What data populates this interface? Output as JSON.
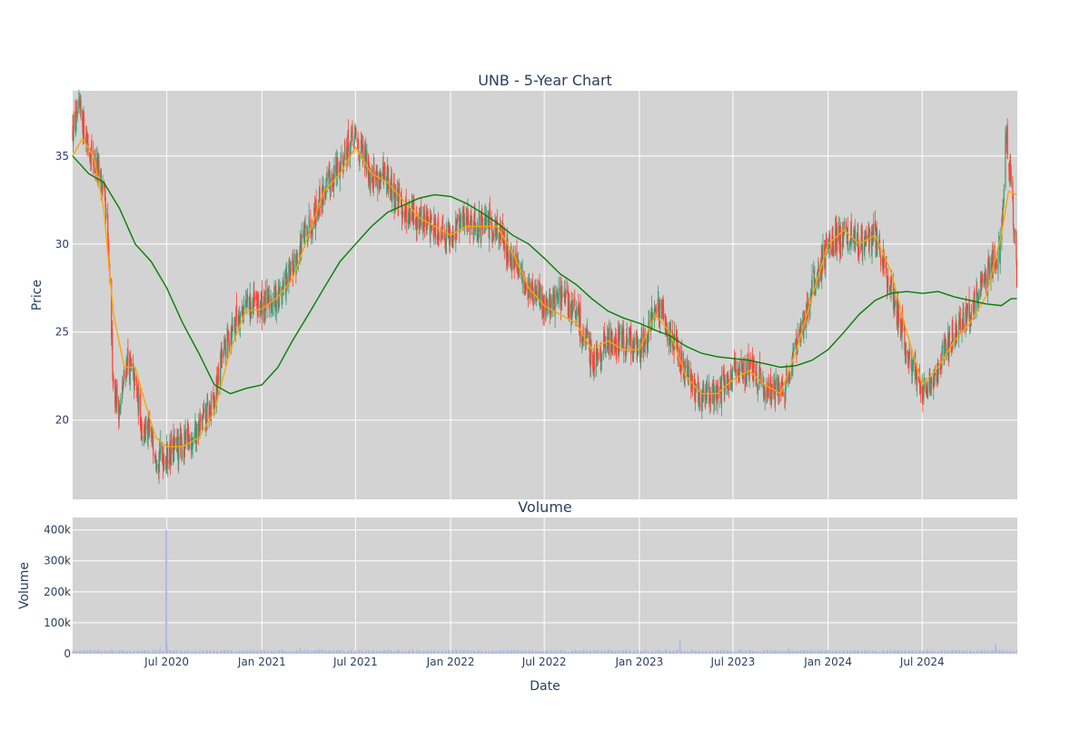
{
  "chart_data": [
    {
      "type": "candlestick",
      "title": "UNB - 5-Year Chart",
      "xlabel": "",
      "ylabel": "Price",
      "x_range": [
        "2020-01-01",
        "2025-01-01"
      ],
      "ylim": [
        15.5,
        38.7
      ],
      "yticks": [
        20,
        25,
        30,
        35
      ],
      "grid": true,
      "legend": "none",
      "colors": {
        "increasing": "#3d9970",
        "decreasing": "#ff4136",
        "ma_short": "#ffa500",
        "ma_long": "#008000",
        "plot_bg": "#d3d3d3"
      },
      "series": [
        {
          "name": "",
          "kind": "close",
          "points": [
            [
              "2020-01-01",
              36.5
            ],
            [
              "2020-01-15",
              37.5
            ],
            [
              "2020-02-01",
              35.5
            ],
            [
              "2020-02-15",
              34.5
            ],
            [
              "2020-03-01",
              33.0
            ],
            [
              "2020-03-10",
              29.5
            ],
            [
              "2020-03-20",
              22.0
            ],
            [
              "2020-04-01",
              20.5
            ],
            [
              "2020-04-15",
              23.5
            ],
            [
              "2020-05-01",
              22.0
            ],
            [
              "2020-05-15",
              19.5
            ],
            [
              "2020-06-01",
              19.0
            ],
            [
              "2020-06-15",
              18.0
            ],
            [
              "2020-07-01",
              18.0
            ],
            [
              "2020-07-15",
              18.3
            ],
            [
              "2020-08-01",
              18.5
            ],
            [
              "2020-09-01",
              19.5
            ],
            [
              "2020-10-01",
              21.0
            ],
            [
              "2020-10-15",
              23.5
            ],
            [
              "2020-11-01",
              25.0
            ],
            [
              "2020-11-15",
              26.0
            ],
            [
              "2020-12-01",
              26.5
            ],
            [
              "2020-12-15",
              26.5
            ],
            [
              "2021-01-01",
              26.5
            ],
            [
              "2021-02-01",
              27.0
            ],
            [
              "2021-03-01",
              28.5
            ],
            [
              "2021-04-01",
              31.0
            ],
            [
              "2021-05-01",
              33.0
            ],
            [
              "2021-06-01",
              34.5
            ],
            [
              "2021-06-15",
              35.5
            ],
            [
              "2021-07-01",
              36.0
            ],
            [
              "2021-07-15",
              35.0
            ],
            [
              "2021-08-01",
              34.0
            ],
            [
              "2021-09-01",
              33.5
            ],
            [
              "2021-10-01",
              32.0
            ],
            [
              "2021-11-01",
              31.5
            ],
            [
              "2021-12-01",
              31.0
            ],
            [
              "2022-01-01",
              30.5
            ],
            [
              "2022-02-01",
              31.5
            ],
            [
              "2022-03-01",
              31.0
            ],
            [
              "2022-04-01",
              31.0
            ],
            [
              "2022-05-01",
              29.0
            ],
            [
              "2022-06-01",
              27.5
            ],
            [
              "2022-07-01",
              26.5
            ],
            [
              "2022-08-01",
              27.0
            ],
            [
              "2022-09-01",
              26.0
            ],
            [
              "2022-10-01",
              23.5
            ],
            [
              "2022-11-01",
              24.5
            ],
            [
              "2022-12-01",
              24.5
            ],
            [
              "2023-01-01",
              24.0
            ],
            [
              "2023-02-01",
              26.5
            ],
            [
              "2023-03-01",
              25.0
            ],
            [
              "2023-04-01",
              22.5
            ],
            [
              "2023-05-01",
              21.5
            ],
            [
              "2023-06-01",
              21.5
            ],
            [
              "2023-07-01",
              22.5
            ],
            [
              "2023-08-01",
              23.0
            ],
            [
              "2023-09-01",
              22.0
            ],
            [
              "2023-10-01",
              21.5
            ],
            [
              "2023-11-01",
              24.0
            ],
            [
              "2023-12-01",
              27.5
            ],
            [
              "2024-01-01",
              30.0
            ],
            [
              "2024-02-01",
              30.5
            ],
            [
              "2024-03-01",
              30.0
            ],
            [
              "2024-04-01",
              30.5
            ],
            [
              "2024-05-01",
              27.5
            ],
            [
              "2024-06-01",
              24.0
            ],
            [
              "2024-07-01",
              21.5
            ],
            [
              "2024-08-01",
              23.0
            ],
            [
              "2024-09-01",
              25.0
            ],
            [
              "2024-10-01",
              26.0
            ],
            [
              "2024-11-01",
              28.0
            ],
            [
              "2024-12-01",
              30.0
            ],
            [
              "2024-12-10",
              36.5
            ],
            [
              "2024-12-20",
              33.5
            ],
            [
              "2024-12-31",
              28.0
            ]
          ]
        },
        {
          "name": "",
          "kind": "moving_average_short",
          "points": [
            [
              "2020-01-01",
              35.0
            ],
            [
              "2020-01-20",
              36.0
            ],
            [
              "2020-02-10",
              35.0
            ],
            [
              "2020-03-01",
              32.0
            ],
            [
              "2020-03-20",
              26.0
            ],
            [
              "2020-04-10",
              23.0
            ],
            [
              "2020-05-01",
              23.0
            ],
            [
              "2020-05-20",
              21.0
            ],
            [
              "2020-06-10",
              19.0
            ],
            [
              "2020-07-01",
              18.5
            ],
            [
              "2020-08-01",
              18.5
            ],
            [
              "2020-09-01",
              19.0
            ],
            [
              "2020-10-01",
              20.5
            ],
            [
              "2020-11-01",
              24.0
            ],
            [
              "2020-12-01",
              26.2
            ],
            [
              "2021-01-01",
              26.3
            ],
            [
              "2021-02-01",
              27.0
            ],
            [
              "2021-03-01",
              28.0
            ],
            [
              "2021-04-01",
              30.5
            ],
            [
              "2021-05-01",
              33.0
            ],
            [
              "2021-06-01",
              34.0
            ],
            [
              "2021-07-01",
              35.5
            ],
            [
              "2021-08-01",
              34.0
            ],
            [
              "2021-09-01",
              33.5
            ],
            [
              "2021-10-01",
              32.5
            ],
            [
              "2021-11-01",
              31.5
            ],
            [
              "2022-01-01",
              30.5
            ],
            [
              "2022-02-01",
              31.0
            ],
            [
              "2022-04-01",
              31.0
            ],
            [
              "2022-05-01",
              29.5
            ],
            [
              "2022-06-01",
              27.5
            ],
            [
              "2022-07-01",
              26.5
            ],
            [
              "2022-09-01",
              25.5
            ],
            [
              "2022-10-01",
              24.0
            ],
            [
              "2022-11-01",
              24.5
            ],
            [
              "2022-12-01",
              24.0
            ],
            [
              "2023-01-01",
              24.0
            ],
            [
              "2023-02-01",
              26.0
            ],
            [
              "2023-03-01",
              25.0
            ],
            [
              "2023-04-01",
              22.5
            ],
            [
              "2023-05-01",
              21.5
            ],
            [
              "2023-06-01",
              21.5
            ],
            [
              "2023-07-01",
              22.3
            ],
            [
              "2023-08-01",
              22.8
            ],
            [
              "2023-09-01",
              22.0
            ],
            [
              "2023-10-01",
              21.5
            ],
            [
              "2023-11-01",
              24.0
            ],
            [
              "2023-12-01",
              27.0
            ],
            [
              "2024-01-01",
              30.0
            ],
            [
              "2024-02-01",
              30.8
            ],
            [
              "2024-03-01",
              30.0
            ],
            [
              "2024-04-01",
              30.5
            ],
            [
              "2024-05-01",
              28.5
            ],
            [
              "2024-06-01",
              25.0
            ],
            [
              "2024-07-01",
              22.0
            ],
            [
              "2024-08-01",
              23.0
            ],
            [
              "2024-09-01",
              24.5
            ],
            [
              "2024-10-01",
              25.5
            ],
            [
              "2024-11-01",
              27.0
            ],
            [
              "2024-12-01",
              30.5
            ],
            [
              "2024-12-15",
              33.0
            ],
            [
              "2024-12-31",
              32.8
            ]
          ]
        },
        {
          "name": "",
          "kind": "moving_average_long",
          "points": [
            [
              "2020-01-01",
              35.0
            ],
            [
              "2020-02-01",
              34.0
            ],
            [
              "2020-03-01",
              33.5
            ],
            [
              "2020-04-01",
              32.0
            ],
            [
              "2020-05-01",
              30.0
            ],
            [
              "2020-06-01",
              29.0
            ],
            [
              "2020-07-01",
              27.5
            ],
            [
              "2020-08-01",
              25.5
            ],
            [
              "2020-09-01",
              23.8
            ],
            [
              "2020-10-01",
              22.0
            ],
            [
              "2020-11-01",
              21.5
            ],
            [
              "2020-12-01",
              21.8
            ],
            [
              "2021-01-01",
              22.0
            ],
            [
              "2021-02-01",
              23.0
            ],
            [
              "2021-03-01",
              24.5
            ],
            [
              "2021-04-01",
              26.0
            ],
            [
              "2021-05-01",
              27.5
            ],
            [
              "2021-06-01",
              29.0
            ],
            [
              "2021-07-01",
              30.0
            ],
            [
              "2021-08-01",
              31.0
            ],
            [
              "2021-09-01",
              31.8
            ],
            [
              "2021-10-01",
              32.2
            ],
            [
              "2021-11-01",
              32.6
            ],
            [
              "2021-12-01",
              32.8
            ],
            [
              "2022-01-01",
              32.7
            ],
            [
              "2022-02-01",
              32.3
            ],
            [
              "2022-03-01",
              31.8
            ],
            [
              "2022-04-01",
              31.2
            ],
            [
              "2022-05-01",
              30.5
            ],
            [
              "2022-06-01",
              30.0
            ],
            [
              "2022-07-01",
              29.2
            ],
            [
              "2022-08-01",
              28.3
            ],
            [
              "2022-09-01",
              27.7
            ],
            [
              "2022-10-01",
              26.9
            ],
            [
              "2022-11-01",
              26.2
            ],
            [
              "2022-12-01",
              25.8
            ],
            [
              "2023-01-01",
              25.5
            ],
            [
              "2023-02-01",
              25.1
            ],
            [
              "2023-03-01",
              24.8
            ],
            [
              "2023-04-01",
              24.2
            ],
            [
              "2023-05-01",
              23.8
            ],
            [
              "2023-06-01",
              23.6
            ],
            [
              "2023-07-01",
              23.5
            ],
            [
              "2023-08-01",
              23.4
            ],
            [
              "2023-09-01",
              23.2
            ],
            [
              "2023-10-01",
              23.0
            ],
            [
              "2023-11-01",
              23.1
            ],
            [
              "2023-12-01",
              23.4
            ],
            [
              "2024-01-01",
              24.0
            ],
            [
              "2024-02-01",
              25.0
            ],
            [
              "2024-03-01",
              26.0
            ],
            [
              "2024-04-01",
              26.8
            ],
            [
              "2024-05-01",
              27.2
            ],
            [
              "2024-06-01",
              27.3
            ],
            [
              "2024-07-01",
              27.2
            ],
            [
              "2024-08-01",
              27.3
            ],
            [
              "2024-09-01",
              27.0
            ],
            [
              "2024-10-01",
              26.8
            ],
            [
              "2024-11-01",
              26.6
            ],
            [
              "2024-12-01",
              26.5
            ],
            [
              "2024-12-20",
              26.9
            ],
            [
              "2024-12-31",
              26.9
            ]
          ]
        }
      ]
    },
    {
      "type": "bar",
      "title": "Volume",
      "xlabel": "Date",
      "ylabel": "Volume",
      "ylim": [
        0,
        440000
      ],
      "yticks": [
        0,
        100000,
        200000,
        300000,
        400000
      ],
      "ytick_labels": [
        "0",
        "100k",
        "200k",
        "300k",
        "400k"
      ],
      "xticks": [
        "2020-07-01",
        "2021-01-01",
        "2021-07-01",
        "2022-01-01",
        "2022-07-01",
        "2023-01-01",
        "2023-07-01",
        "2024-01-01",
        "2024-07-01"
      ],
      "xtick_labels": [
        "Jul 2020",
        "Jan 2021",
        "Jul 2021",
        "Jan 2022",
        "Jul 2022",
        "Jan 2023",
        "Jul 2023",
        "Jan 2024",
        "Jul 2024"
      ],
      "color": "#b0b8e8",
      "grid": true,
      "series": [
        {
          "name": "",
          "base": 9000,
          "spikes": [
            [
              "2020-06-30",
              400000
            ],
            [
              "2020-06-20",
              25000
            ],
            [
              "2020-07-04",
              30000
            ],
            [
              "2021-03-15",
              18000
            ],
            [
              "2023-03-20",
              45000
            ],
            [
              "2023-10-15",
              20000
            ],
            [
              "2024-11-20",
              30000
            ]
          ]
        }
      ]
    }
  ]
}
